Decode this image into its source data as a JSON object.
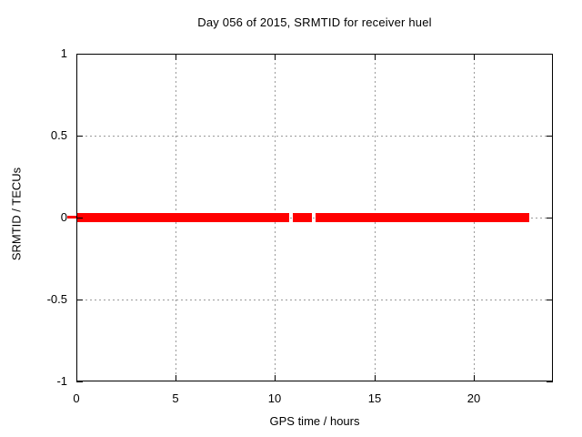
{
  "chart_data": {
    "type": "line",
    "title": "Day 056 of 2015, SRMTID for receiver huel",
    "xlabel": "GPS time / hours",
    "ylabel": "SRMTID / TECUs",
    "xlim": [
      0,
      24
    ],
    "ylim": [
      -1,
      1
    ],
    "xticks": [
      0,
      5,
      10,
      15,
      20
    ],
    "yticks": [
      1,
      0.5,
      0,
      -0.5,
      -1
    ],
    "xtick_labels": [
      "0",
      "5",
      "10",
      "15",
      "20"
    ],
    "ytick_labels": [
      "1",
      "0.5",
      "0",
      "-0.5",
      "-1"
    ],
    "grid": true,
    "grid_xticks": [
      5,
      10,
      15,
      20
    ],
    "grid_yticks": [
      0.5,
      0,
      -0.5
    ],
    "legend_position": "none",
    "series": [
      {
        "name": "SRMTID",
        "style": "thick-horizontal-band",
        "y_value": 0,
        "color": "#ff0000",
        "segments_hours": [
          [
            0.0,
            10.72
          ],
          [
            10.9,
            11.87
          ],
          [
            12.05,
            22.82
          ]
        ],
        "left_axis_overhang_marker": true
      }
    ],
    "colors": {
      "background": "#ffffff",
      "frame": "#000000",
      "grid": "#9a9a9a",
      "text": "#000000",
      "series": "#ff0000"
    }
  }
}
